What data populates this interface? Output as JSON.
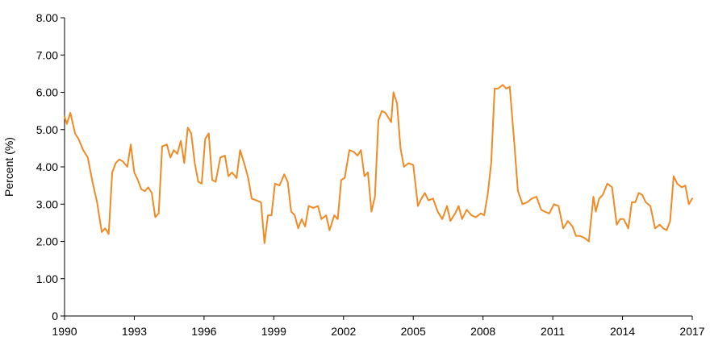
{
  "chart_data": {
    "type": "line",
    "title": "",
    "xlabel": "",
    "ylabel": "Percent (%)",
    "xlim": [
      1990,
      2017
    ],
    "ylim": [
      0,
      8
    ],
    "grid": false,
    "legend": "none",
    "x_ticks": [
      "1990",
      "1993",
      "1996",
      "1999",
      "2002",
      "2005",
      "2008",
      "2011",
      "2014",
      "2017"
    ],
    "y_ticks": [
      "0",
      "1.00",
      "2.00",
      "3.00",
      "4.00",
      "5.00",
      "6.00",
      "7.00",
      "8.00"
    ],
    "series": [
      {
        "color": "#f08a24",
        "x": [
          1990.0,
          1990.1,
          1990.25,
          1990.45,
          1990.6,
          1990.8,
          1991.0,
          1991.2,
          1991.4,
          1991.6,
          1991.75,
          1991.9,
          1992.05,
          1992.2,
          1992.35,
          1992.5,
          1992.7,
          1992.85,
          1993.0,
          1993.15,
          1993.3,
          1993.45,
          1993.6,
          1993.75,
          1993.9,
          1994.05,
          1994.2,
          1994.4,
          1994.55,
          1994.7,
          1994.85,
          1995.0,
          1995.15,
          1995.3,
          1995.45,
          1995.6,
          1995.75,
          1995.9,
          1996.05,
          1996.2,
          1996.35,
          1996.5,
          1996.7,
          1996.9,
          1997.05,
          1997.2,
          1997.4,
          1997.55,
          1997.75,
          1997.9,
          1998.05,
          1998.25,
          1998.45,
          1998.6,
          1998.75,
          1998.9,
          1999.05,
          1999.25,
          1999.45,
          1999.6,
          1999.75,
          1999.9,
          2000.05,
          2000.2,
          2000.35,
          2000.5,
          2000.7,
          2000.9,
          2001.05,
          2001.25,
          2001.4,
          2001.6,
          2001.75,
          2001.9,
          2002.05,
          2002.25,
          2002.45,
          2002.6,
          2002.75,
          2002.9,
          2003.05,
          2003.2,
          2003.35,
          2003.5,
          2003.65,
          2003.8,
          2003.95,
          2004.05,
          2004.15,
          2004.3,
          2004.45,
          2004.6,
          2004.8,
          2005.0,
          2005.2,
          2005.35,
          2005.5,
          2005.65,
          2005.85,
          2006.05,
          2006.25,
          2006.45,
          2006.6,
          2006.8,
          2006.95,
          2007.1,
          2007.3,
          2007.5,
          2007.7,
          2007.9,
          2008.05,
          2008.2,
          2008.35,
          2008.5,
          2008.65,
          2008.85,
          2009.0,
          2009.15,
          2009.35,
          2009.5,
          2009.7,
          2009.9,
          2010.1,
          2010.3,
          2010.5,
          2010.65,
          2010.85,
          2011.05,
          2011.25,
          2011.45,
          2011.65,
          2011.85,
          2012.0,
          2012.15,
          2012.35,
          2012.55,
          2012.75,
          2012.85,
          2013.0,
          2013.15,
          2013.35,
          2013.55,
          2013.75,
          2013.9,
          2014.05,
          2014.25,
          2014.4,
          2014.55,
          2014.7,
          2014.85,
          2015.0,
          2015.2,
          2015.4,
          2015.6,
          2015.75,
          2015.9,
          2016.05,
          2016.2,
          2016.35,
          2016.55,
          2016.7,
          2016.85,
          2017.0
        ],
        "y": [
          5.35,
          5.15,
          5.45,
          4.9,
          4.75,
          4.45,
          4.25,
          3.6,
          3.05,
          2.25,
          2.35,
          2.2,
          3.85,
          4.1,
          4.2,
          4.15,
          4.0,
          4.6,
          3.85,
          3.65,
          3.4,
          3.35,
          3.45,
          3.3,
          2.65,
          2.75,
          4.55,
          4.6,
          4.25,
          4.45,
          4.35,
          4.7,
          4.1,
          5.05,
          4.9,
          4.1,
          3.6,
          3.55,
          4.75,
          4.9,
          3.65,
          3.6,
          4.25,
          4.3,
          3.75,
          3.85,
          3.7,
          4.45,
          4.05,
          3.7,
          3.15,
          3.1,
          3.05,
          1.95,
          2.7,
          2.7,
          3.55,
          3.5,
          3.8,
          3.6,
          2.8,
          2.7,
          2.35,
          2.6,
          2.4,
          2.95,
          2.9,
          2.95,
          2.6,
          2.7,
          2.3,
          2.7,
          2.6,
          3.65,
          3.7,
          4.45,
          4.4,
          4.3,
          4.45,
          3.75,
          3.85,
          2.8,
          3.2,
          5.25,
          5.5,
          5.45,
          5.3,
          5.2,
          6.0,
          5.7,
          4.5,
          4.0,
          4.1,
          4.05,
          2.95,
          3.15,
          3.3,
          3.1,
          3.15,
          2.8,
          2.6,
          2.95,
          2.55,
          2.75,
          2.95,
          2.6,
          2.85,
          2.7,
          2.65,
          2.75,
          2.7,
          3.25,
          4.1,
          6.1,
          6.1,
          6.2,
          6.1,
          6.15,
          4.6,
          3.35,
          3.0,
          3.05,
          3.15,
          3.2,
          2.85,
          2.8,
          2.75,
          3.0,
          2.95,
          2.35,
          2.55,
          2.4,
          2.15,
          2.15,
          2.1,
          2.0,
          3.2,
          2.8,
          3.15,
          3.25,
          3.55,
          3.45,
          2.45,
          2.6,
          2.6,
          2.35,
          3.05,
          3.05,
          3.3,
          3.25,
          3.05,
          2.95,
          2.35,
          2.45,
          2.35,
          2.3,
          2.55,
          3.75,
          3.55,
          3.45,
          3.5,
          3.0,
          3.15
        ]
      }
    ]
  }
}
